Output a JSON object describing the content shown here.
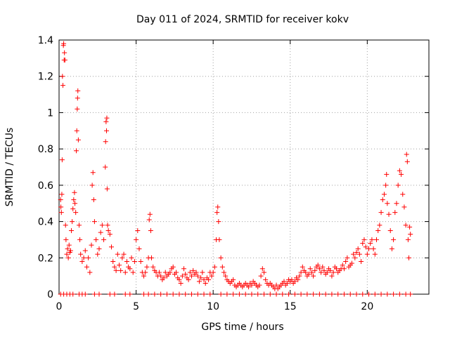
{
  "chart_data": {
    "type": "scatter",
    "title": "Day 011 of 2024, SRMTID for receiver kokv",
    "xlabel": "GPS time / hours",
    "ylabel": "SRMTID / TECUs",
    "xlim": [
      0,
      24
    ],
    "ylim": [
      0,
      1.4
    ],
    "xticks": [
      0,
      5,
      10,
      15,
      20
    ],
    "yticks": [
      0,
      0.2,
      0.4,
      0.6,
      0.8,
      1,
      1.2,
      1.4
    ],
    "x_tick_labels": [
      "0",
      "5",
      "10",
      "15",
      "20"
    ],
    "y_tick_labels": [
      "0",
      "0.2",
      "0.4",
      "0.6",
      "0.8",
      "1",
      "1.2",
      "1.4"
    ],
    "grid": true,
    "marker": "+",
    "color": "#ff0000",
    "series": [
      {
        "name": "SRMTID",
        "points": [
          [
            0.1,
            0.52
          ],
          [
            0.12,
            0.48
          ],
          [
            0.15,
            0.45
          ],
          [
            0.18,
            0.55
          ],
          [
            0.2,
            0.74
          ],
          [
            0.22,
            1.2
          ],
          [
            0.25,
            1.15
          ],
          [
            0.28,
            1.37
          ],
          [
            0.3,
            1.38
          ],
          [
            0.33,
            1.29
          ],
          [
            0.35,
            1.33
          ],
          [
            0.38,
            1.29
          ],
          [
            0.42,
            0.38
          ],
          [
            0.45,
            0.3
          ],
          [
            0.5,
            0.22
          ],
          [
            0.55,
            0.25
          ],
          [
            0.6,
            0.2
          ],
          [
            0.65,
            0.27
          ],
          [
            0.7,
            0.23
          ],
          [
            0.75,
            0.24
          ],
          [
            0.8,
            0.35
          ],
          [
            0.85,
            0.4
          ],
          [
            0.9,
            0.47
          ],
          [
            0.95,
            0.52
          ],
          [
            1.0,
            0.56
          ],
          [
            1.03,
            0.5
          ],
          [
            1.08,
            0.45
          ],
          [
            1.12,
            0.79
          ],
          [
            1.15,
            0.9
          ],
          [
            1.18,
            1.02
          ],
          [
            1.2,
            1.08
          ],
          [
            1.22,
            1.12
          ],
          [
            1.25,
            0.85
          ],
          [
            1.3,
            0.38
          ],
          [
            1.35,
            0.3
          ],
          [
            1.4,
            0.22
          ],
          [
            1.5,
            0.18
          ],
          [
            1.6,
            0.2
          ],
          [
            1.7,
            0.24
          ],
          [
            1.8,
            0.15
          ],
          [
            1.9,
            0.2
          ],
          [
            2.0,
            0.12
          ],
          [
            2.1,
            0.27
          ],
          [
            2.15,
            0.6
          ],
          [
            2.2,
            0.67
          ],
          [
            2.25,
            0.52
          ],
          [
            2.3,
            0.4
          ],
          [
            2.4,
            0.3
          ],
          [
            2.5,
            0.22
          ],
          [
            2.6,
            0.25
          ],
          [
            2.7,
            0.34
          ],
          [
            2.8,
            0.38
          ],
          [
            2.9,
            0.3
          ],
          [
            3.0,
            0.7
          ],
          [
            3.02,
            0.84
          ],
          [
            3.05,
            0.95
          ],
          [
            3.08,
            0.9
          ],
          [
            3.1,
            0.97
          ],
          [
            3.12,
            0.58
          ],
          [
            3.15,
            0.38
          ],
          [
            3.2,
            0.35
          ],
          [
            3.3,
            0.33
          ],
          [
            3.4,
            0.26
          ],
          [
            3.5,
            0.18
          ],
          [
            3.6,
            0.15
          ],
          [
            3.7,
            0.13
          ],
          [
            3.8,
            0.22
          ],
          [
            3.9,
            0.16
          ],
          [
            4.0,
            0.13
          ],
          [
            4.1,
            0.2
          ],
          [
            4.2,
            0.22
          ],
          [
            4.3,
            0.12
          ],
          [
            4.4,
            0.18
          ],
          [
            4.5,
            0.15
          ],
          [
            4.6,
            0.14
          ],
          [
            4.7,
            0.2
          ],
          [
            4.8,
            0.12
          ],
          [
            4.9,
            0.18
          ],
          [
            5.0,
            0.3
          ],
          [
            5.1,
            0.35
          ],
          [
            5.2,
            0.25
          ],
          [
            5.3,
            0.18
          ],
          [
            5.4,
            0.12
          ],
          [
            5.5,
            0.1
          ],
          [
            5.6,
            0.12
          ],
          [
            5.7,
            0.15
          ],
          [
            5.8,
            0.2
          ],
          [
            5.85,
            0.41
          ],
          [
            5.9,
            0.44
          ],
          [
            5.95,
            0.35
          ],
          [
            6.0,
            0.2
          ],
          [
            6.1,
            0.15
          ],
          [
            6.2,
            0.13
          ],
          [
            6.3,
            0.12
          ],
          [
            6.4,
            0.1
          ],
          [
            6.5,
            0.12
          ],
          [
            6.6,
            0.1
          ],
          [
            6.7,
            0.08
          ],
          [
            6.8,
            0.09
          ],
          [
            6.9,
            0.12
          ],
          [
            7.0,
            0.1
          ],
          [
            7.1,
            0.11
          ],
          [
            7.2,
            0.12
          ],
          [
            7.3,
            0.14
          ],
          [
            7.4,
            0.15
          ],
          [
            7.5,
            0.11
          ],
          [
            7.6,
            0.12
          ],
          [
            7.7,
            0.09
          ],
          [
            7.8,
            0.08
          ],
          [
            7.9,
            0.06
          ],
          [
            8.0,
            0.1
          ],
          [
            8.1,
            0.14
          ],
          [
            8.2,
            0.11
          ],
          [
            8.3,
            0.09
          ],
          [
            8.4,
            0.08
          ],
          [
            8.5,
            0.12
          ],
          [
            8.6,
            0.1
          ],
          [
            8.7,
            0.13
          ],
          [
            8.8,
            0.11
          ],
          [
            8.9,
            0.12
          ],
          [
            9.0,
            0.1
          ],
          [
            9.1,
            0.07
          ],
          [
            9.2,
            0.09
          ],
          [
            9.3,
            0.12
          ],
          [
            9.4,
            0.08
          ],
          [
            9.5,
            0.06
          ],
          [
            9.6,
            0.09
          ],
          [
            9.7,
            0.08
          ],
          [
            9.8,
            0.12
          ],
          [
            9.9,
            0.1
          ],
          [
            10.0,
            0.12
          ],
          [
            10.1,
            0.15
          ],
          [
            10.2,
            0.3
          ],
          [
            10.25,
            0.45
          ],
          [
            10.3,
            0.48
          ],
          [
            10.35,
            0.4
          ],
          [
            10.4,
            0.3
          ],
          [
            10.5,
            0.2
          ],
          [
            10.6,
            0.15
          ],
          [
            10.7,
            0.12
          ],
          [
            10.8,
            0.1
          ],
          [
            10.9,
            0.08
          ],
          [
            11.0,
            0.07
          ],
          [
            11.1,
            0.06
          ],
          [
            11.2,
            0.07
          ],
          [
            11.3,
            0.08
          ],
          [
            11.4,
            0.05
          ],
          [
            11.5,
            0.04
          ],
          [
            11.6,
            0.05
          ],
          [
            11.7,
            0.06
          ],
          [
            11.8,
            0.05
          ],
          [
            11.9,
            0.04
          ],
          [
            12.0,
            0.05
          ],
          [
            12.1,
            0.06
          ],
          [
            12.2,
            0.05
          ],
          [
            12.3,
            0.04
          ],
          [
            12.4,
            0.06
          ],
          [
            12.5,
            0.05
          ],
          [
            12.6,
            0.07
          ],
          [
            12.7,
            0.06
          ],
          [
            12.8,
            0.05
          ],
          [
            12.9,
            0.04
          ],
          [
            13.0,
            0.05
          ],
          [
            13.1,
            0.1
          ],
          [
            13.2,
            0.14
          ],
          [
            13.3,
            0.12
          ],
          [
            13.4,
            0.08
          ],
          [
            13.5,
            0.06
          ],
          [
            13.6,
            0.05
          ],
          [
            13.7,
            0.06
          ],
          [
            13.8,
            0.05
          ],
          [
            13.9,
            0.04
          ],
          [
            14.0,
            0.03
          ],
          [
            14.1,
            0.05
          ],
          [
            14.2,
            0.03
          ],
          [
            14.3,
            0.04
          ],
          [
            14.4,
            0.05
          ],
          [
            14.5,
            0.06
          ],
          [
            14.6,
            0.07
          ],
          [
            14.7,
            0.05
          ],
          [
            14.8,
            0.06
          ],
          [
            14.9,
            0.08
          ],
          [
            15.0,
            0.07
          ],
          [
            15.1,
            0.08
          ],
          [
            15.2,
            0.06
          ],
          [
            15.3,
            0.07
          ],
          [
            15.4,
            0.09
          ],
          [
            15.5,
            0.08
          ],
          [
            15.6,
            0.1
          ],
          [
            15.7,
            0.12
          ],
          [
            15.8,
            0.15
          ],
          [
            15.9,
            0.13
          ],
          [
            16.0,
            0.12
          ],
          [
            16.1,
            0.1
          ],
          [
            16.2,
            0.11
          ],
          [
            16.3,
            0.14
          ],
          [
            16.4,
            0.12
          ],
          [
            16.5,
            0.1
          ],
          [
            16.6,
            0.13
          ],
          [
            16.7,
            0.15
          ],
          [
            16.8,
            0.16
          ],
          [
            16.9,
            0.14
          ],
          [
            17.0,
            0.12
          ],
          [
            17.1,
            0.15
          ],
          [
            17.2,
            0.13
          ],
          [
            17.3,
            0.11
          ],
          [
            17.4,
            0.12
          ],
          [
            17.5,
            0.14
          ],
          [
            17.6,
            0.13
          ],
          [
            17.7,
            0.1
          ],
          [
            17.8,
            0.12
          ],
          [
            17.9,
            0.15
          ],
          [
            18.0,
            0.14
          ],
          [
            18.1,
            0.12
          ],
          [
            18.2,
            0.13
          ],
          [
            18.3,
            0.14
          ],
          [
            18.4,
            0.16
          ],
          [
            18.5,
            0.14
          ],
          [
            18.6,
            0.18
          ],
          [
            18.7,
            0.2
          ],
          [
            18.8,
            0.15
          ],
          [
            18.9,
            0.16
          ],
          [
            19.0,
            0.17
          ],
          [
            19.1,
            0.22
          ],
          [
            19.2,
            0.2
          ],
          [
            19.3,
            0.23
          ],
          [
            19.4,
            0.25
          ],
          [
            19.5,
            0.22
          ],
          [
            19.6,
            0.18
          ],
          [
            19.7,
            0.28
          ],
          [
            19.8,
            0.3
          ],
          [
            19.9,
            0.26
          ],
          [
            20.0,
            0.22
          ],
          [
            20.1,
            0.25
          ],
          [
            20.2,
            0.28
          ],
          [
            20.3,
            0.3
          ],
          [
            20.4,
            0.25
          ],
          [
            20.5,
            0.22
          ],
          [
            20.6,
            0.3
          ],
          [
            20.7,
            0.35
          ],
          [
            20.8,
            0.38
          ],
          [
            20.9,
            0.45
          ],
          [
            21.0,
            0.52
          ],
          [
            21.1,
            0.55
          ],
          [
            21.2,
            0.6
          ],
          [
            21.25,
            0.66
          ],
          [
            21.3,
            0.5
          ],
          [
            21.4,
            0.44
          ],
          [
            21.5,
            0.35
          ],
          [
            21.6,
            0.25
          ],
          [
            21.7,
            0.3
          ],
          [
            21.8,
            0.45
          ],
          [
            21.9,
            0.5
          ],
          [
            22.0,
            0.6
          ],
          [
            22.1,
            0.68
          ],
          [
            22.2,
            0.66
          ],
          [
            22.3,
            0.55
          ],
          [
            22.4,
            0.48
          ],
          [
            22.5,
            0.38
          ],
          [
            22.55,
            0.77
          ],
          [
            22.6,
            0.73
          ],
          [
            22.65,
            0.3
          ],
          [
            22.7,
            0.2
          ],
          [
            22.75,
            0.37
          ],
          [
            22.8,
            0.33
          ],
          [
            0.1,
            0
          ],
          [
            0.3,
            0
          ],
          [
            0.5,
            0
          ],
          [
            0.7,
            0
          ],
          [
            0.9,
            0
          ],
          [
            1.3,
            0
          ],
          [
            1.5,
            0
          ],
          [
            1.7,
            0
          ],
          [
            2.3,
            0
          ],
          [
            2.6,
            0
          ],
          [
            3.3,
            0
          ],
          [
            3.6,
            0
          ],
          [
            4.3,
            0
          ],
          [
            4.6,
            0
          ],
          [
            5.5,
            0
          ],
          [
            5.8,
            0
          ],
          [
            6.2,
            0
          ],
          [
            6.6,
            0
          ],
          [
            7.0,
            0
          ],
          [
            7.4,
            0
          ],
          [
            7.8,
            0
          ],
          [
            8.2,
            0
          ],
          [
            8.6,
            0
          ],
          [
            9.0,
            0
          ],
          [
            9.4,
            0
          ],
          [
            9.8,
            0
          ],
          [
            10.5,
            0
          ],
          [
            10.9,
            0
          ],
          [
            11.3,
            0
          ],
          [
            11.7,
            0
          ],
          [
            12.1,
            0
          ],
          [
            12.5,
            0
          ],
          [
            12.9,
            0
          ],
          [
            13.3,
            0
          ],
          [
            13.7,
            0
          ],
          [
            14.1,
            0
          ],
          [
            14.5,
            0
          ],
          [
            14.9,
            0
          ],
          [
            15.3,
            0
          ],
          [
            15.7,
            0
          ],
          [
            16.1,
            0
          ],
          [
            16.5,
            0
          ],
          [
            16.9,
            0
          ],
          [
            17.3,
            0
          ],
          [
            17.7,
            0
          ],
          [
            18.1,
            0
          ],
          [
            18.5,
            0
          ],
          [
            18.9,
            0
          ],
          [
            19.3,
            0
          ],
          [
            19.7,
            0
          ],
          [
            20.1,
            0
          ],
          [
            20.5,
            0
          ],
          [
            20.9,
            0
          ],
          [
            21.3,
            0
          ],
          [
            21.7,
            0
          ],
          [
            22.1,
            0
          ],
          [
            22.5,
            0
          ],
          [
            22.8,
            0
          ]
        ]
      }
    ]
  }
}
